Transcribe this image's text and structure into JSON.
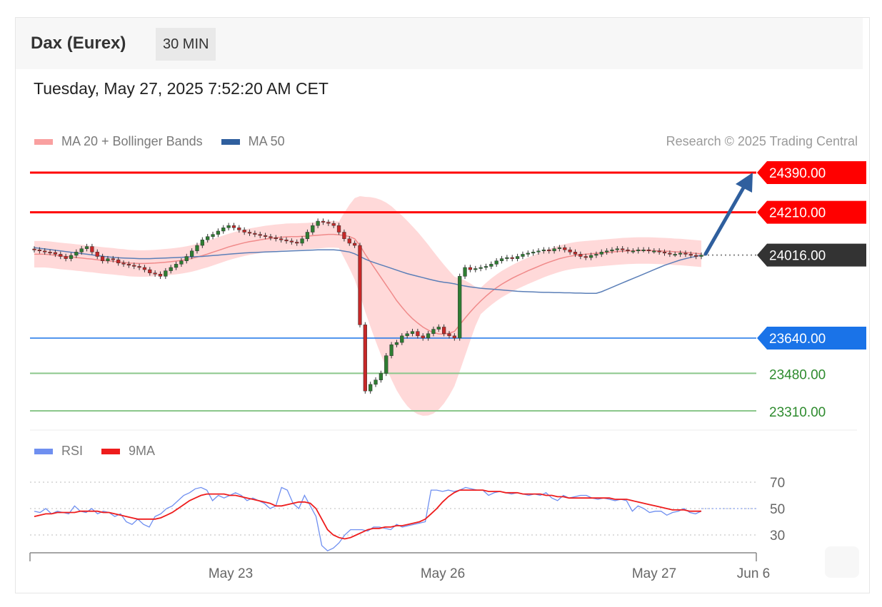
{
  "header": {
    "title": "Dax (Eurex)",
    "timeframe": "30 MIN",
    "datetime": "Tuesday, May 27, 2025 7:52:20 AM CET"
  },
  "legend": {
    "ma20": "MA 20 + Bollinger Bands",
    "ma50": "MA 50",
    "rsi": "RSI",
    "rsi_ma": "9MA"
  },
  "credit": "Research © 2025 Trading Central",
  "colors": {
    "resistance": "#ff0000",
    "support": "#1a73e8",
    "support_target": "#8bc78b",
    "current": "#333333",
    "bollinger": "#ffcccc",
    "ma20": "#f08a8a",
    "ma50": "#5b7fb8",
    "up": "#2e7d32",
    "down": "#c62828",
    "arrow": "#2f5f9e",
    "rsi": "#6f8ff0",
    "rsi_ma": "#ee1c1c"
  },
  "chart_data": [
    {
      "type": "candlestick",
      "ylim": [
        23290,
        24430
      ],
      "x_labels": [
        "May 23",
        "May 26",
        "May 27",
        "Jun 6"
      ],
      "levels": [
        {
          "label": "24390.00",
          "value": 24390,
          "kind": "resistance"
        },
        {
          "label": "24210.00",
          "value": 24210,
          "kind": "resistance"
        },
        {
          "label": "24016.00",
          "value": 24016,
          "kind": "current"
        },
        {
          "label": "23640.00",
          "value": 23640,
          "kind": "support"
        },
        {
          "label": "23480.00",
          "value": 23480,
          "kind": "target"
        },
        {
          "label": "23310.00",
          "value": 23310,
          "kind": "target"
        }
      ],
      "close": [
        24040,
        24035,
        24030,
        24028,
        24020,
        24010,
        24000,
        24015,
        24030,
        24045,
        24055,
        24030,
        24010,
        23990,
        24000,
        23995,
        23980,
        23975,
        23970,
        23965,
        23960,
        23950,
        23935,
        23930,
        23920,
        23945,
        23960,
        23975,
        23990,
        24010,
        24035,
        24060,
        24085,
        24100,
        24110,
        24125,
        24140,
        24150,
        24140,
        24130,
        24120,
        24115,
        24110,
        24105,
        24100,
        24095,
        24090,
        24085,
        24080,
        24075,
        24070,
        24090,
        24120,
        24150,
        24170,
        24165,
        24160,
        24150,
        24120,
        24090,
        24070,
        24060,
        23700,
        23400,
        23430,
        23450,
        23480,
        23560,
        23610,
        23620,
        23650,
        23660,
        23670,
        23650,
        23640,
        23660,
        23680,
        23690,
        23660,
        23650,
        23640,
        23920,
        23960,
        23950,
        23955,
        23960,
        23965,
        23975,
        23990,
        24000,
        24005,
        24000,
        24010,
        24020,
        24025,
        24030,
        24035,
        24040,
        24035,
        24045,
        24050,
        24040,
        24030,
        24020,
        24010,
        24005,
        24015,
        24020,
        24030,
        24035,
        24040,
        24045,
        24040,
        24035,
        24035,
        24040,
        24040,
        24035,
        24035,
        24030,
        24025,
        24020,
        24020,
        24025,
        24020,
        24015,
        24010,
        24016
      ],
      "ma20": [
        24020,
        24020,
        24020,
        24018,
        24015,
        24012,
        24010,
        24008,
        24005,
        24003,
        24000,
        23998,
        23995,
        23992,
        23990,
        23988,
        23985,
        23983,
        23980,
        23979,
        23978,
        23978,
        23979,
        23980,
        23982,
        23984,
        23986,
        23989,
        23992,
        23996,
        24001,
        24007,
        24014,
        24021,
        24029,
        24037,
        24045,
        24053,
        24060,
        24066,
        24072,
        24077,
        24081,
        24085,
        24089,
        24092,
        24095,
        24097,
        24099,
        24100,
        24100,
        24101,
        24102,
        24104,
        24106,
        24108,
        24110,
        24110,
        24108,
        24105,
        24100,
        24090,
        24060,
        24020,
        23985,
        23950,
        23915,
        23880,
        23845,
        23810,
        23780,
        23752,
        23728,
        23708,
        23690,
        23676,
        23665,
        23659,
        23658,
        23662,
        23670,
        23700,
        23730,
        23758,
        23784,
        23808,
        23830,
        23850,
        23868,
        23884,
        23898,
        23911,
        23923,
        23934,
        23945,
        23955,
        23965,
        23975,
        23984,
        23992,
        24000,
        24006,
        24011,
        24015,
        24018,
        24020,
        24022,
        24024,
        24026,
        24028,
        24030,
        24032,
        24034,
        24035,
        24036,
        24037,
        24037,
        24037,
        24036,
        24035,
        24034,
        24033,
        24031,
        24030,
        24028,
        24026,
        24024,
        24022
      ],
      "ma50": [
        24050,
        24047,
        24044,
        24041,
        24038,
        24035,
        24032,
        24029,
        24026,
        24023,
        24020,
        24017,
        24014,
        24011,
        24008,
        24006,
        24004,
        24003,
        24002,
        24001,
        24000,
        24000,
        24000,
        24001,
        24002,
        24003,
        24004,
        24005,
        24006,
        24007,
        24008,
        24009,
        24010,
        24012,
        24014,
        24016,
        24018,
        24020,
        24022,
        24024,
        24026,
        24027,
        24028,
        24029,
        24030,
        24031,
        24032,
        24033,
        24034,
        24035,
        24036,
        24037,
        24038,
        24039,
        24040,
        24040,
        24040,
        24040,
        24038,
        24034,
        24030,
        24022,
        24010,
        23998,
        23988,
        23980,
        23972,
        23964,
        23956,
        23948,
        23940,
        23932,
        23926,
        23920,
        23914,
        23908,
        23902,
        23897,
        23893,
        23890,
        23886,
        23880,
        23876,
        23872,
        23869,
        23866,
        23864,
        23862,
        23860,
        23858,
        23856,
        23854,
        23852,
        23851,
        23850,
        23849,
        23848,
        23847,
        23847,
        23846,
        23846,
        23845,
        23845,
        23844,
        23844,
        23843,
        23843,
        23843,
        23850,
        23860,
        23870,
        23880,
        23890,
        23900,
        23910,
        23920,
        23930,
        23940,
        23950,
        23960,
        23970,
        23978,
        23986,
        23994,
        24000,
        24006,
        24010,
        24016
      ]
    },
    {
      "type": "line",
      "ylim": [
        10,
        80
      ],
      "ticks": [
        "70",
        "50",
        "30"
      ],
      "tick_values": [
        70,
        50,
        30
      ],
      "series": [
        {
          "name": "RSI",
          "values": [
            48,
            47,
            50,
            46,
            48,
            47,
            46,
            52,
            48,
            47,
            50,
            46,
            48,
            47,
            44,
            46,
            40,
            38,
            42,
            38,
            36,
            44,
            46,
            50,
            52,
            56,
            60,
            62,
            65,
            66,
            64,
            56,
            60,
            58,
            60,
            62,
            60,
            56,
            58,
            56,
            54,
            50,
            52,
            66,
            64,
            54,
            50,
            60,
            52,
            44,
            22,
            18,
            20,
            24,
            30,
            34,
            34,
            34,
            33,
            36,
            36,
            35,
            34,
            38,
            36,
            37,
            38,
            39,
            40,
            64,
            64,
            63,
            64,
            63,
            64,
            66,
            65,
            64,
            64,
            60,
            62,
            63,
            62,
            61,
            62,
            61,
            60,
            61,
            60,
            62,
            58,
            56,
            60,
            58,
            59,
            60,
            60,
            58,
            57,
            58,
            57,
            56,
            57,
            56,
            48,
            52,
            50,
            47,
            48,
            48,
            45,
            47,
            48,
            50,
            47,
            46,
            48
          ]
        },
        {
          "name": "9MA",
          "values": [
            44,
            45,
            46,
            46,
            47,
            47,
            47,
            47,
            48,
            48,
            48,
            48,
            47,
            47,
            46,
            45,
            44,
            43,
            42,
            42,
            42,
            42,
            43,
            45,
            47,
            50,
            53,
            56,
            58,
            60,
            61,
            61,
            61,
            61,
            60,
            60,
            59,
            58,
            57,
            56,
            55,
            54,
            52,
            52,
            53,
            54,
            55,
            55,
            54,
            50,
            42,
            34,
            30,
            28,
            27,
            28,
            30,
            32,
            34,
            35,
            35,
            36,
            36,
            37,
            37,
            38,
            39,
            40,
            42,
            46,
            50,
            55,
            59,
            62,
            64,
            64,
            64,
            64,
            64,
            63,
            63,
            63,
            62,
            62,
            62,
            61,
            61,
            61,
            61,
            60,
            60,
            59,
            59,
            58,
            58,
            58,
            58,
            58,
            58,
            58,
            58,
            57,
            57,
            57,
            56,
            55,
            54,
            53,
            52,
            51,
            50,
            49,
            49,
            49,
            48,
            48,
            48
          ]
        }
      ],
      "legend_placement": "top-left"
    }
  ]
}
